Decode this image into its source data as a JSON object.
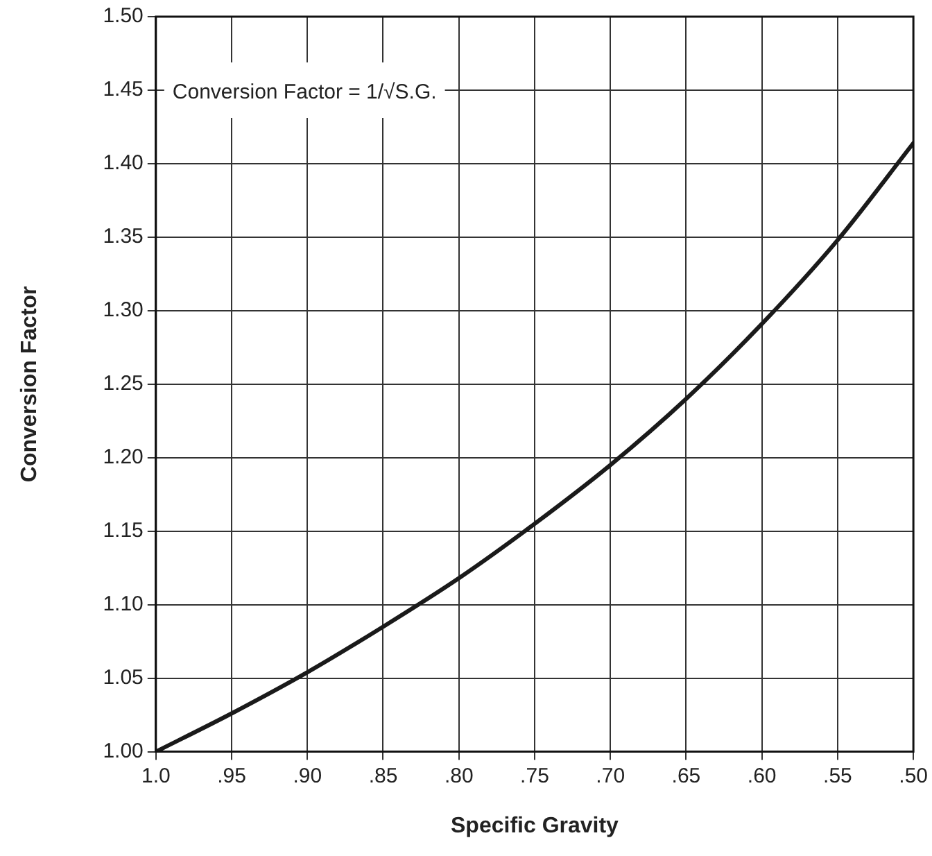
{
  "chart_data": {
    "type": "line",
    "xlabel": "Specific Gravity",
    "ylabel": "Conversion Factor",
    "x": [
      1.0,
      0.95,
      0.9,
      0.85,
      0.8,
      0.75,
      0.7,
      0.65,
      0.6,
      0.55,
      0.5
    ],
    "series": [
      {
        "color": "#1a1a1a",
        "values": [
          1.0,
          1.026,
          1.054,
          1.085,
          1.118,
          1.155,
          1.195,
          1.24,
          1.291,
          1.348,
          1.414
        ]
      }
    ],
    "xlim": [
      1.0,
      0.5
    ],
    "xticks": [
      {
        "value": 1.0,
        "label": "1.0"
      },
      {
        "value": 0.95,
        "label": ".95"
      },
      {
        "value": 0.9,
        "label": ".90"
      },
      {
        "value": 0.85,
        "label": ".85"
      },
      {
        "value": 0.8,
        "label": ".80"
      },
      {
        "value": 0.75,
        "label": ".75"
      },
      {
        "value": 0.7,
        "label": ".70"
      },
      {
        "value": 0.65,
        "label": ".65"
      },
      {
        "value": 0.6,
        "label": ".60"
      },
      {
        "value": 0.55,
        "label": ".55"
      },
      {
        "value": 0.5,
        "label": ".50"
      }
    ],
    "ylim": [
      1.0,
      1.5
    ],
    "yticks": [
      {
        "value": 1.0,
        "label": "1.00"
      },
      {
        "value": 1.05,
        "label": "1.05"
      },
      {
        "value": 1.1,
        "label": "1.10"
      },
      {
        "value": 1.15,
        "label": "1.15"
      },
      {
        "value": 1.2,
        "label": "1.20"
      },
      {
        "value": 1.25,
        "label": "1.25"
      },
      {
        "value": 1.3,
        "label": "1.30"
      },
      {
        "value": 1.35,
        "label": "1.35"
      },
      {
        "value": 1.4,
        "label": "1.40"
      },
      {
        "value": 1.45,
        "label": "1.45"
      },
      {
        "value": 1.5,
        "label": "1.50"
      }
    ],
    "annotations": [
      "Conversion Factor = 1/√S.G."
    ],
    "grid": true,
    "marker": "none",
    "line_style": "solid"
  }
}
